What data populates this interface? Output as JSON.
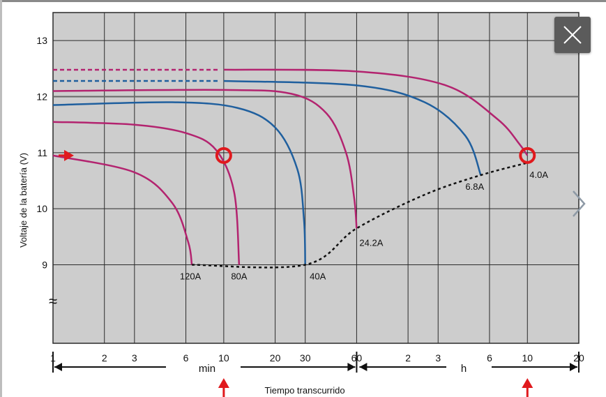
{
  "viewer": {
    "close_icon": "close-icon",
    "next_icon": "chevron-right-icon"
  },
  "colors": {
    "plot_bg": "#cdcdcd",
    "grid": "#2a2a2a",
    "magenta": "#b3236f",
    "blue": "#1f5f9e",
    "dotted": "#111111",
    "marker": "#e0191d"
  },
  "chart_data": {
    "type": "line",
    "ylabel": "Voltaje de la batería (V)",
    "xlabel": "Tiempo transcurrido",
    "x_unit_labels": [
      "min",
      "h"
    ],
    "x_scale": "log",
    "x_ticks": [
      {
        "label": "1",
        "minutes": 1
      },
      {
        "label": "2",
        "minutes": 2
      },
      {
        "label": "3",
        "minutes": 3
      },
      {
        "label": "6",
        "minutes": 6
      },
      {
        "label": "10",
        "minutes": 10
      },
      {
        "label": "20",
        "minutes": 20
      },
      {
        "label": "30",
        "minutes": 30
      },
      {
        "label": "60",
        "minutes": 60
      },
      {
        "label": "2",
        "minutes": 120
      },
      {
        "label": "3",
        "minutes": 180
      },
      {
        "label": "6",
        "minutes": 360
      },
      {
        "label": "10",
        "minutes": 600
      },
      {
        "label": "20",
        "minutes": 1200
      }
    ],
    "y_ticks": [
      "9",
      "10",
      "11",
      "12",
      "13"
    ],
    "ylim": [
      7.6,
      13.5
    ],
    "y_break_symbol": "≈",
    "series": [
      {
        "name": "120A",
        "color": "magenta",
        "points": [
          [
            1,
            10.95
          ],
          [
            3,
            10.65
          ],
          [
            5,
            10.1
          ],
          [
            6.2,
            9.4
          ],
          [
            6.5,
            9.0
          ]
        ]
      },
      {
        "name": "80A",
        "color": "magenta",
        "points": [
          [
            1,
            11.55
          ],
          [
            3,
            11.5
          ],
          [
            6,
            11.35
          ],
          [
            9,
            11.05
          ],
          [
            11.5,
            10.3
          ],
          [
            12.3,
            9.0
          ]
        ]
      },
      {
        "name": "40A",
        "color": "blue",
        "points": [
          [
            1,
            11.85
          ],
          [
            5,
            11.9
          ],
          [
            12,
            11.8
          ],
          [
            20,
            11.45
          ],
          [
            27,
            10.7
          ],
          [
            29.5,
            9.8
          ],
          [
            30,
            9.0
          ]
        ]
      },
      {
        "name": "24.2A",
        "color": "magenta",
        "points": [
          [
            1,
            12.1
          ],
          [
            10,
            12.12
          ],
          [
            25,
            12.05
          ],
          [
            40,
            11.7
          ],
          [
            52,
            11.0
          ],
          [
            58,
            10.2
          ],
          [
            60,
            9.65
          ]
        ]
      },
      {
        "name": "6.8A",
        "color": "blue",
        "points": [
          [
            1,
            12.28
          ],
          [
            10,
            12.28
          ],
          [
            60,
            12.2
          ],
          [
            150,
            11.9
          ],
          [
            260,
            11.3
          ],
          [
            320,
            10.6
          ]
        ]
      },
      {
        "name": "4.0A",
        "color": "magenta",
        "points": [
          [
            1,
            12.48
          ],
          [
            10,
            12.48
          ],
          [
            60,
            12.45
          ],
          [
            200,
            12.2
          ],
          [
            400,
            11.6
          ],
          [
            540,
            11.15
          ],
          [
            600,
            10.95
          ]
        ]
      }
    ],
    "curve_labels": [
      "120A",
      "80A",
      "40A",
      "24.2A",
      "6.8A",
      "4.0A"
    ],
    "markers": [
      {
        "x": 10,
        "y": 10.95
      },
      {
        "x": 600,
        "y": 10.95
      }
    ]
  }
}
